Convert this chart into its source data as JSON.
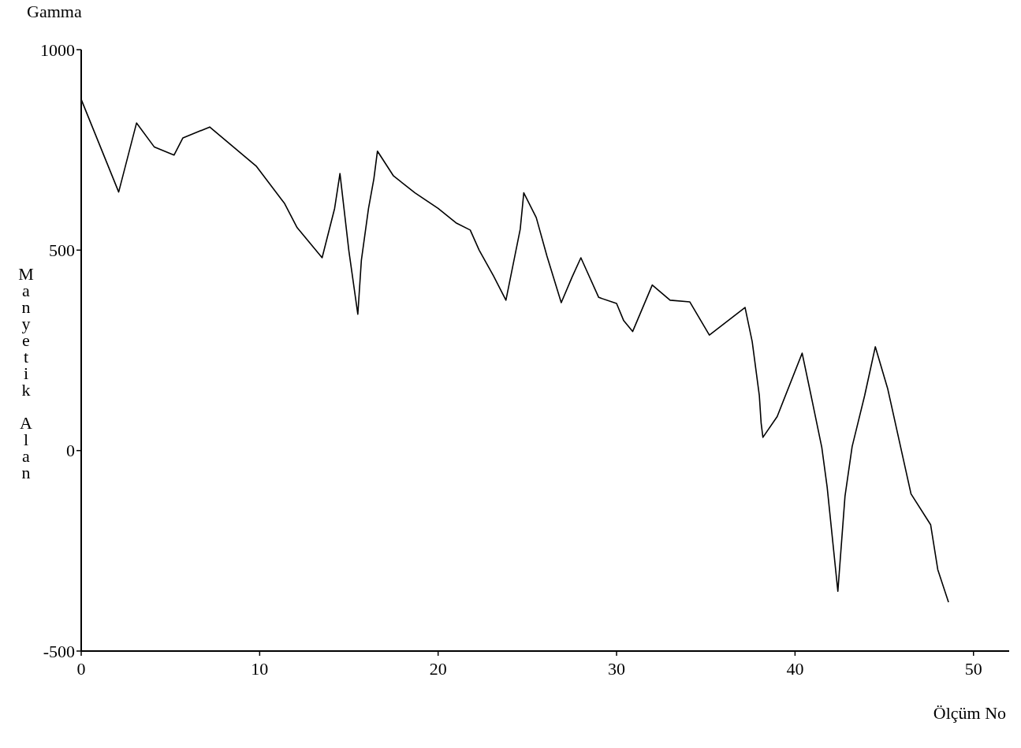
{
  "chart_data": {
    "type": "line",
    "xlabel": "Ölçüm No",
    "ylabel": "Manyetik Alan",
    "annotations": [
      "Gamma"
    ],
    "x": [
      0,
      2.1,
      3.1,
      4.1,
      5.2,
      5.7,
      7.2,
      9.8,
      11.4,
      12.1,
      13.5,
      14.2,
      14.5,
      15.0,
      15.5,
      15.7,
      16.1,
      16.4,
      16.6,
      17.5,
      18.7,
      20.0,
      21.0,
      21.8,
      22.3,
      23.1,
      23.8,
      24.6,
      24.7,
      24.8,
      25.5,
      26.1,
      26.9,
      27.5,
      28.0,
      29.0,
      30.0,
      30.4,
      30.9,
      32.0,
      33.0,
      34.1,
      35.2,
      37.2,
      37.6,
      38.0,
      38.1,
      38.2,
      39.0,
      40.4,
      40.9,
      41.5,
      41.8,
      42.4,
      42.8,
      43.2,
      43.9,
      44.5,
      45.2,
      46.5,
      47.6,
      48.0,
      48.6
    ],
    "series": [
      {
        "color": "#000000",
        "values": [
          876,
          645,
          817,
          757,
          737,
          780,
          807,
          710,
          616,
          556,
          481,
          604,
          691,
          498,
          340,
          475,
          604,
          678,
          747,
          685,
          643,
          604,
          568,
          550,
          500,
          436,
          375,
          552,
          597,
          643,
          581,
          485,
          369,
          432,
          481,
          382,
          367,
          324,
          297,
          413,
          375,
          371,
          288,
          357,
          272,
          137,
          69,
          33,
          85,
          243,
          137,
          8,
          -91,
          -351,
          -114,
          10,
          137,
          259,
          153,
          -108,
          -185,
          -297,
          -378
        ]
      }
    ],
    "xlim": [
      0,
      52
    ],
    "ylim": [
      -500,
      1000
    ],
    "xticks": [
      0,
      10,
      20,
      30,
      40,
      50
    ],
    "yticks": [
      -500,
      0,
      500,
      1000
    ],
    "grid": false,
    "marker": "none",
    "line_style": "solid"
  }
}
